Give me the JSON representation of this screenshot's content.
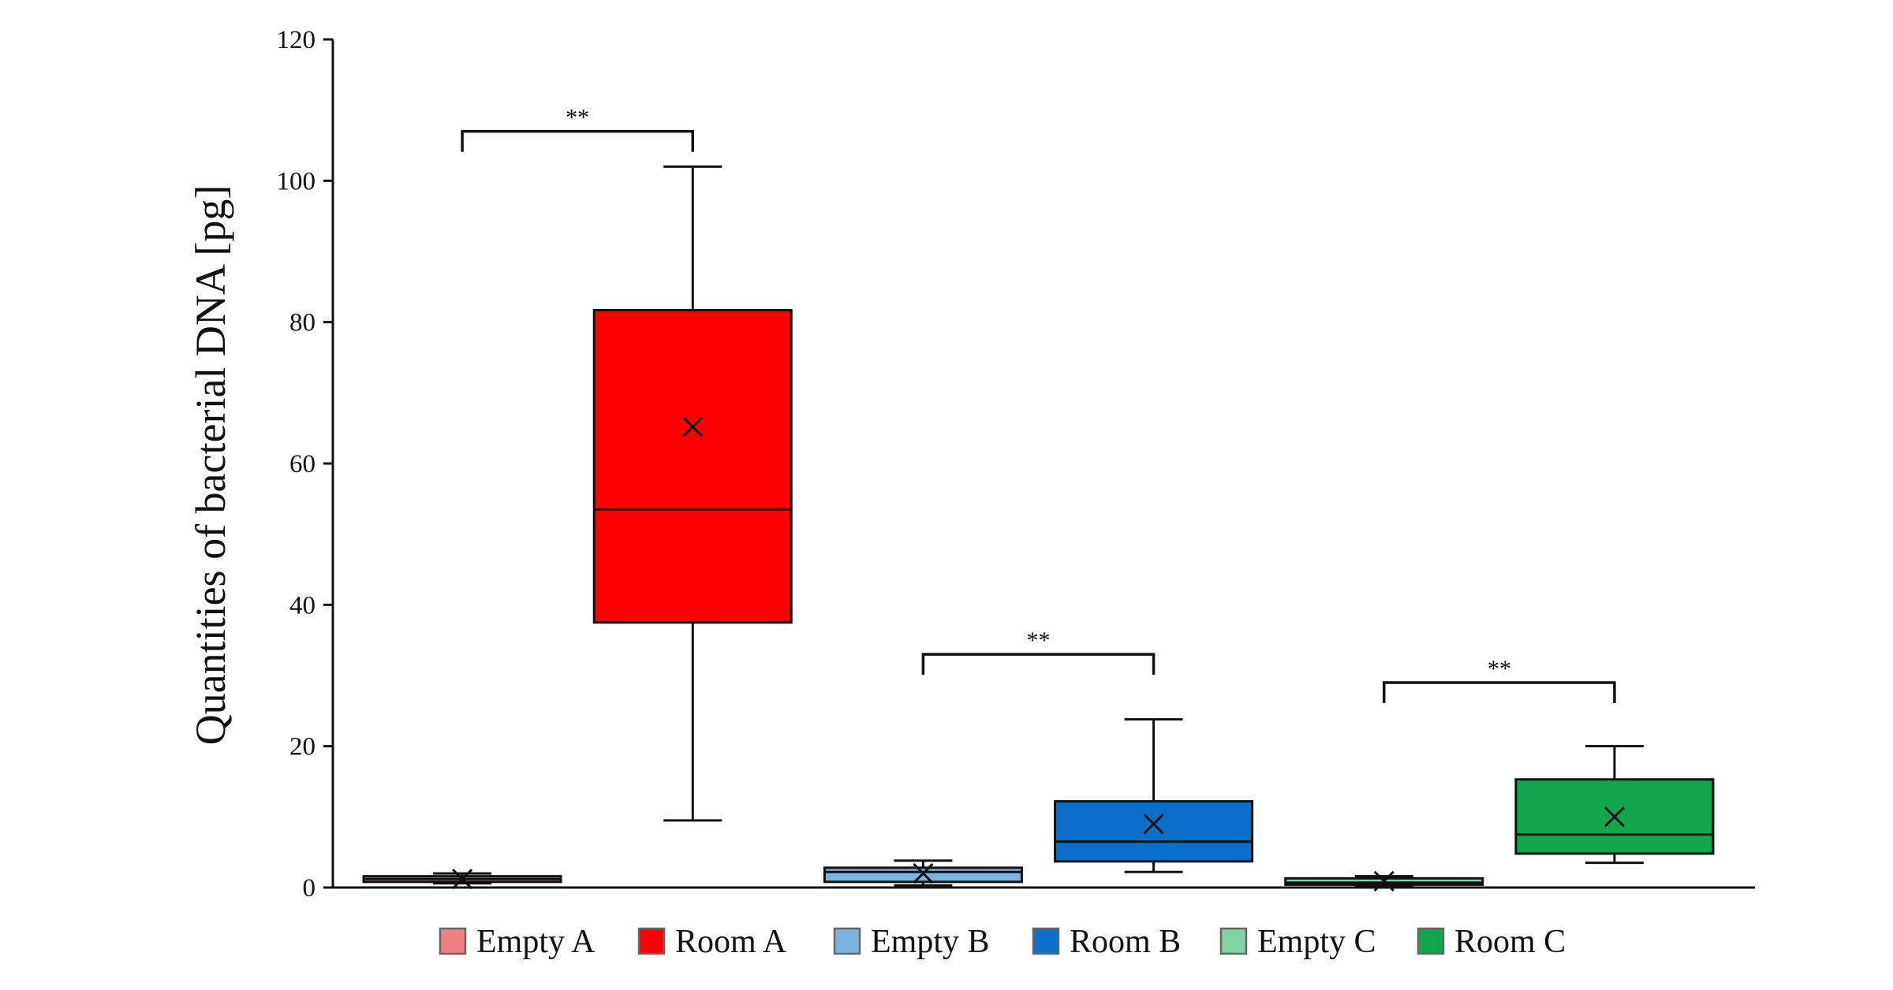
{
  "chart_data": {
    "type": "box",
    "ylabel": "Quantities of bacterial DNA [pg]",
    "ylim": [
      0,
      120
    ],
    "yticks": [
      0,
      20,
      40,
      60,
      80,
      100,
      120
    ],
    "grid": false,
    "legend_position": "bottom",
    "groups": [
      {
        "name": "Empty A",
        "color": "#f08080",
        "min": 0.6,
        "q1": 0.8,
        "median": 1.2,
        "q3": 1.6,
        "max": 2.0,
        "mean": 1.2
      },
      {
        "name": "Room A",
        "color": "#ff0000",
        "min": 9.5,
        "q1": 37.5,
        "median": 53.5,
        "q3": 81.7,
        "max": 102.0,
        "mean": 65.2
      },
      {
        "name": "Empty B",
        "color": "#7eb4e0",
        "min": 0.3,
        "q1": 0.8,
        "median": 2.2,
        "q3": 2.8,
        "max": 3.8,
        "mean": 2.0
      },
      {
        "name": "Room B",
        "color": "#0a6fc8",
        "min": 2.2,
        "q1": 3.7,
        "median": 6.5,
        "q3": 12.2,
        "max": 23.8,
        "mean": 9.0
      },
      {
        "name": "Empty C",
        "color": "#7fd4a4",
        "min": 0.2,
        "q1": 0.4,
        "median": 0.7,
        "q3": 1.3,
        "max": 1.6,
        "mean": 0.9
      },
      {
        "name": "Room C",
        "color": "#11a64c",
        "min": 3.5,
        "q1": 4.8,
        "median": 7.5,
        "q3": 15.3,
        "max": 20.0,
        "mean": 10.0
      }
    ],
    "significance": [
      {
        "from": "Empty A",
        "to": "Room A",
        "label": "**",
        "y": 107
      },
      {
        "from": "Empty B",
        "to": "Room B",
        "label": "**",
        "y": 33
      },
      {
        "from": "Empty C",
        "to": "Room C",
        "label": "**",
        "y": 29
      }
    ]
  }
}
